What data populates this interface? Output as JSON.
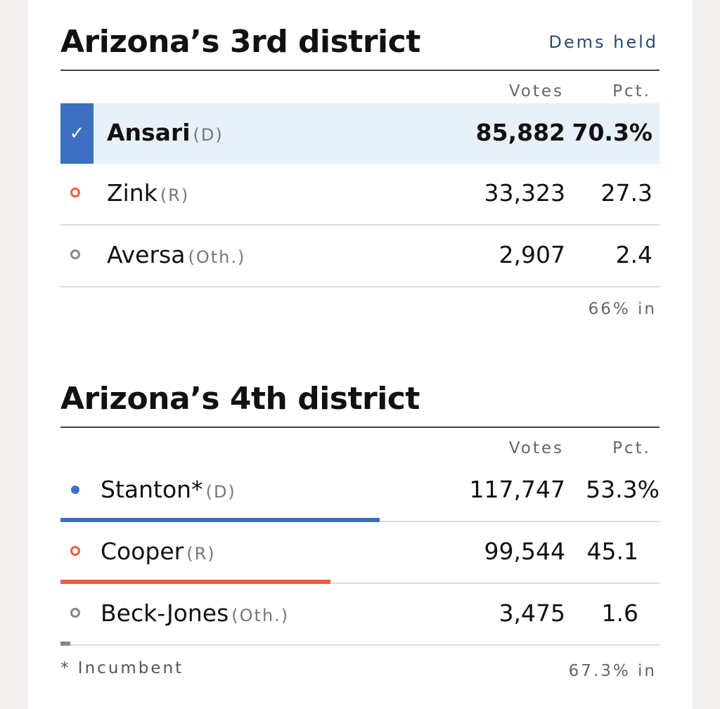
{
  "colors": {
    "dem": "#3c6fc0",
    "rep": "#ef5a41",
    "other": "#888888",
    "winner_bg": "#e8f0fa"
  },
  "race1": {
    "title": "Arizona’s 3rd district",
    "tag": "Dems held",
    "votes_header": "Votes",
    "pct_header": "Pct.",
    "candidates": [
      {
        "name": "Ansari",
        "party": "(D)",
        "votes": "85,882",
        "pct": "70.3%",
        "winner": true,
        "icon": "check-icon"
      },
      {
        "name": "Zink",
        "party": "(R)",
        "votes": "33,323",
        "pct": "27.3",
        "icon": "ring-dot-icon"
      },
      {
        "name": "Aversa",
        "party": "(Oth.)",
        "votes": "2,907",
        "pct": "2.4",
        "icon": "ring-dot-icon"
      }
    ],
    "reporting": "66% in"
  },
  "race2": {
    "title": "Arizona’s 4th district",
    "votes_header": "Votes",
    "pct_header": "Pct.",
    "candidates": [
      {
        "name": "Stanton*",
        "party": "(D)",
        "votes": "117,747",
        "pct": "53.3%",
        "share": 0.533,
        "icon": "filled-dot-icon"
      },
      {
        "name": "Cooper",
        "party": "(R)",
        "votes": "99,544",
        "pct": "45.1",
        "share": 0.451,
        "icon": "ring-dot-icon"
      },
      {
        "name": "Beck-Jones",
        "party": "(Oth.)",
        "votes": "3,475",
        "pct": "1.6",
        "share": 0.016,
        "icon": "ring-dot-icon"
      }
    ],
    "footnote": "* Incumbent",
    "reporting": "67.3% in"
  }
}
